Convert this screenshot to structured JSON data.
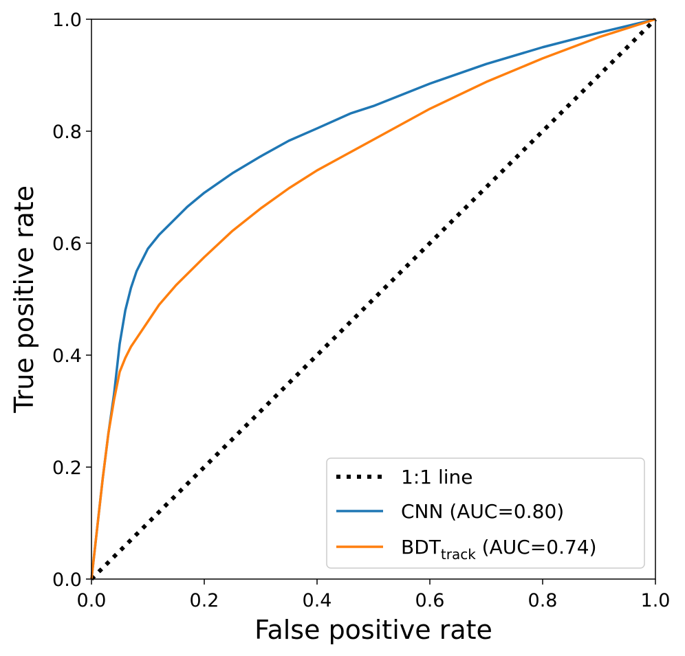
{
  "chart_data": {
    "type": "line",
    "title": "",
    "xlabel": "False positive rate",
    "ylabel": "True positive rate",
    "xlim": [
      0.0,
      1.0
    ],
    "ylim": [
      0.0,
      1.0
    ],
    "x_ticks": [
      0.0,
      0.2,
      0.4,
      0.6,
      0.8,
      1.0
    ],
    "y_ticks": [
      0.0,
      0.2,
      0.4,
      0.6,
      0.8,
      1.0
    ],
    "x_tick_labels": [
      "0.0",
      "0.2",
      "0.4",
      "0.6",
      "0.8",
      "1.0"
    ],
    "y_tick_labels": [
      "0.0",
      "0.2",
      "0.4",
      "0.6",
      "0.8",
      "1.0"
    ],
    "grid": false,
    "legend_position": "bottom-right",
    "series": [
      {
        "name": "1:1 line",
        "legend_label": "1:1 line",
        "color": "#000000",
        "style": "dotted",
        "x": [
          0.0,
          1.0
        ],
        "y": [
          0.0,
          1.0
        ]
      },
      {
        "name": "CNN",
        "legend_label": "CNN (AUC=0.80)",
        "color": "#1f77b4",
        "style": "solid",
        "x": [
          0.0,
          0.01,
          0.02,
          0.03,
          0.04,
          0.05,
          0.06,
          0.07,
          0.08,
          0.09,
          0.1,
          0.12,
          0.14,
          0.17,
          0.2,
          0.25,
          0.3,
          0.35,
          0.4,
          0.46,
          0.5,
          0.6,
          0.7,
          0.8,
          0.9,
          1.0
        ],
        "y": [
          0.0,
          0.09,
          0.18,
          0.26,
          0.33,
          0.42,
          0.48,
          0.52,
          0.55,
          0.57,
          0.59,
          0.615,
          0.635,
          0.665,
          0.69,
          0.725,
          0.755,
          0.783,
          0.805,
          0.832,
          0.845,
          0.885,
          0.92,
          0.95,
          0.976,
          1.0
        ]
      },
      {
        "name": "BDT_track",
        "legend_label": "BDT",
        "legend_subscript": "track",
        "legend_suffix": " (AUC=0.74)",
        "color": "#ff7f0e",
        "style": "solid",
        "x": [
          0.0,
          0.01,
          0.02,
          0.03,
          0.04,
          0.05,
          0.06,
          0.07,
          0.08,
          0.1,
          0.12,
          0.15,
          0.2,
          0.25,
          0.3,
          0.35,
          0.4,
          0.5,
          0.6,
          0.7,
          0.8,
          0.9,
          1.0
        ],
        "y": [
          0.0,
          0.09,
          0.18,
          0.26,
          0.32,
          0.37,
          0.395,
          0.415,
          0.43,
          0.46,
          0.49,
          0.525,
          0.575,
          0.622,
          0.662,
          0.698,
          0.73,
          0.785,
          0.84,
          0.888,
          0.93,
          0.968,
          1.0
        ]
      }
    ]
  }
}
